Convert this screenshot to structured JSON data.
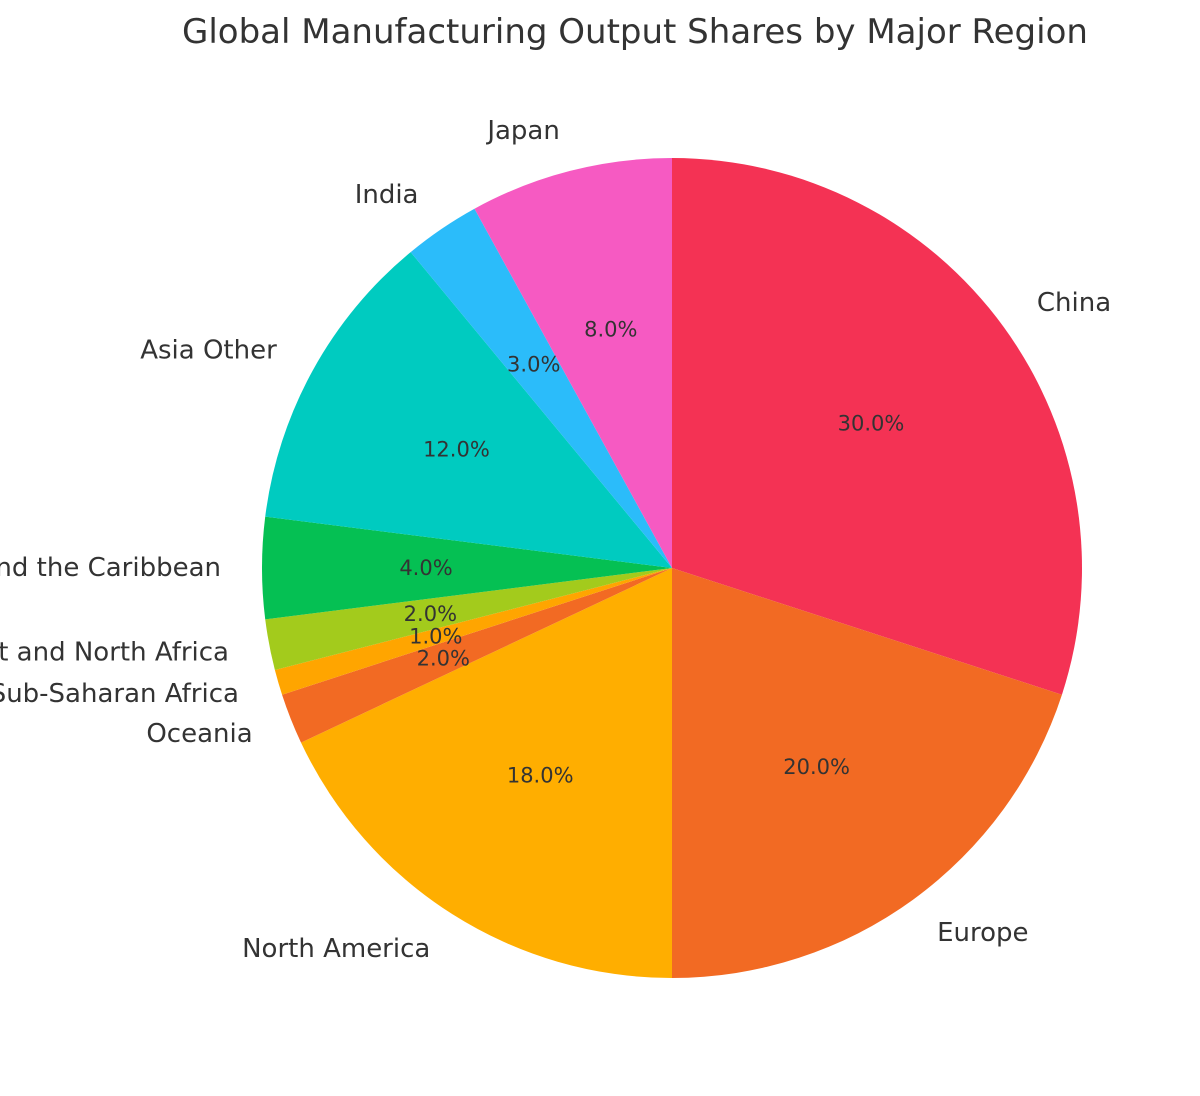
{
  "chart_data": {
    "type": "pie",
    "title": "Global Manufacturing Output Shares by Major Region",
    "start_angle_deg": 90,
    "direction": "clockwise",
    "slices": [
      {
        "label": "China",
        "value": 30.0,
        "pct_label": "30.0%",
        "color": "#F43254"
      },
      {
        "label": "Europe",
        "value": 20.0,
        "pct_label": "20.0%",
        "color": "#F26A23"
      },
      {
        "label": "North America",
        "value": 18.0,
        "pct_label": "18.0%",
        "color": "#FFAE00"
      },
      {
        "label": "Oceania",
        "value": 2.0,
        "pct_label": "2.0%",
        "color": "#F26A23"
      },
      {
        "label": "Sub-Saharan Africa",
        "value": 1.0,
        "pct_label": "1.0%",
        "color": "#FFA500"
      },
      {
        "label": "Middle East and North Africa",
        "value": 2.0,
        "pct_label": "2.0%",
        "color": "#A3CB1C"
      },
      {
        "label": "Latin America and the Caribbean",
        "value": 4.0,
        "pct_label": "4.0%",
        "color": "#05C053"
      },
      {
        "label": "Asia Other",
        "value": 12.0,
        "pct_label": "12.0%",
        "color": "#00CBC0"
      },
      {
        "label": "India",
        "value": 3.0,
        "pct_label": "3.0%",
        "color": "#2BBCFA"
      },
      {
        "label": "Japan",
        "value": 8.0,
        "pct_label": "8.0%",
        "color": "#F65AC2"
      }
    ]
  }
}
